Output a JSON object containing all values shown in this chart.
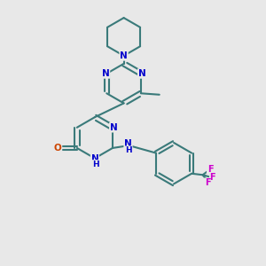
{
  "bg_color": "#e8e8e8",
  "bond_color": "#3a7a7a",
  "N_color": "#0000cc",
  "O_color": "#cc4400",
  "F_color": "#cc00cc",
  "lw": 1.5,
  "fs": 7.5,
  "xlim": [
    0,
    9
  ],
  "ylim": [
    0,
    10
  ]
}
